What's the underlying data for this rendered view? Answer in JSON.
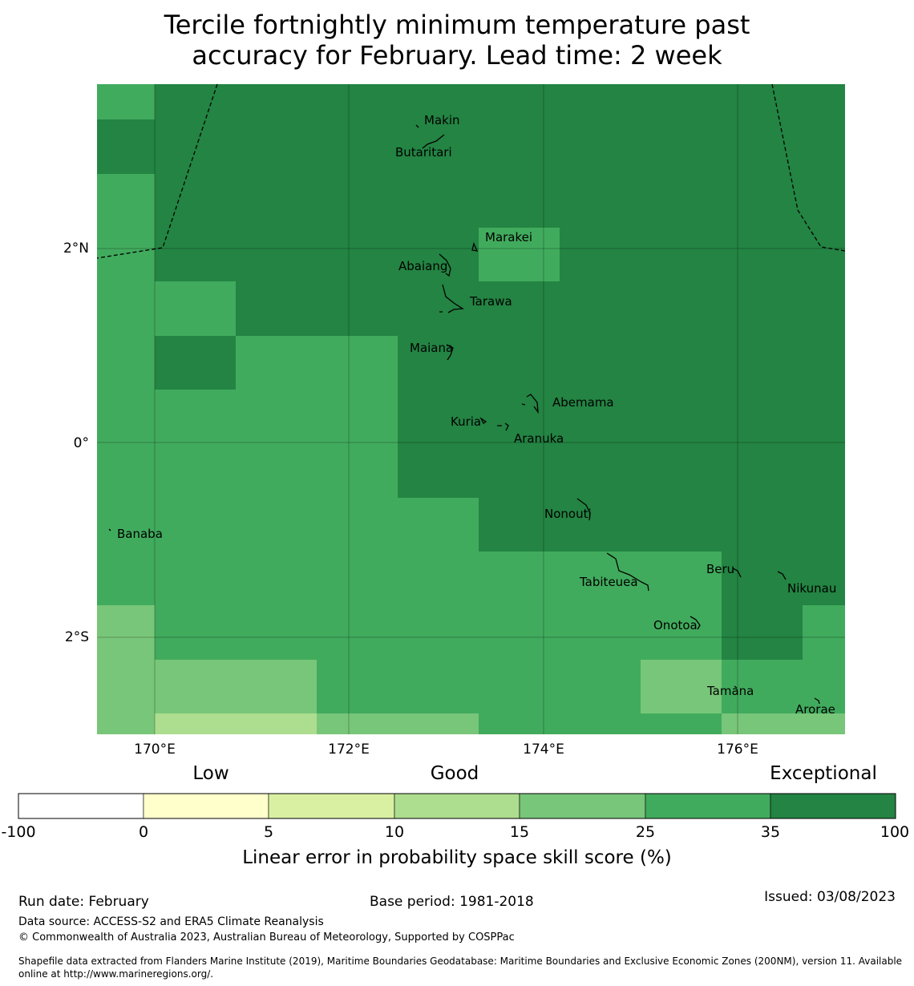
{
  "title": {
    "line1": "Tercile fortnightly minimum temperature past",
    "line2": "accuracy for February. Lead time: 2 week"
  },
  "map": {
    "lat_labels": [
      "2°N",
      "0°",
      "2°S"
    ],
    "lon_labels": [
      "170°E",
      "172°E",
      "174°E",
      "176°E"
    ],
    "islands": [
      {
        "name": "Makin"
      },
      {
        "name": "Butaritari"
      },
      {
        "name": "Marakei"
      },
      {
        "name": "Abaiang"
      },
      {
        "name": "Tarawa"
      },
      {
        "name": "Maiana"
      },
      {
        "name": "Abemama"
      },
      {
        "name": "Kuria"
      },
      {
        "name": "Aranuka"
      },
      {
        "name": "Nonouti"
      },
      {
        "name": "Banaba"
      },
      {
        "name": "Beru"
      },
      {
        "name": "Tabiteuea"
      },
      {
        "name": "Nikunau"
      },
      {
        "name": "Onotoa"
      },
      {
        "name": "Tamana"
      },
      {
        "name": "Arorae"
      }
    ],
    "colors": {
      "exceptional": "#238443",
      "good_high": "#41ab5d",
      "good_mid": "#78c679",
      "good_low": "#addd8e"
    }
  },
  "legend": {
    "category_labels": [
      "Low",
      "Good",
      "Exceptional"
    ],
    "tick_labels": [
      "-100",
      "0",
      "5",
      "10",
      "15",
      "25",
      "35",
      "100"
    ],
    "colors": [
      "#ffffff",
      "#ffffcc",
      "#d9f0a3",
      "#addd8e",
      "#78c679",
      "#41ab5d",
      "#238443"
    ],
    "axis_label": "Linear error in probability space skill score (%)"
  },
  "footer": {
    "run_date": "Run date: February",
    "base_period": "Base period: 1981-2018",
    "issued": "Issued: 03/08/2023",
    "data_source": "Data source: ACCESS-S2 and ERA5 Climate Reanalysis",
    "copyright": "© Commonwealth of Australia 2023, Australian Bureau of Meteorology, Supported by COSPPac",
    "shapefile_line1": "Shapefile data extracted from Flanders Marine Institute (2019), Maritime Boundaries Geodatabase: Maritime Boundaries and Exclusive Economic Zones (200NM), version 11. Available",
    "shapefile_line2": "online at http://www.marineregions.org/."
  }
}
